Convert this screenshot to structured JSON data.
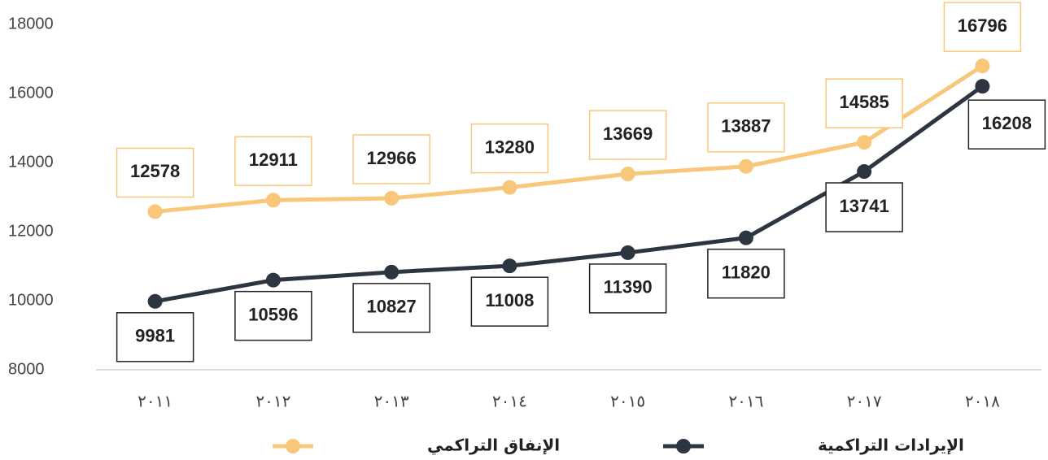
{
  "chart_data": {
    "type": "line",
    "categories": [
      "٢٠١١",
      "٢٠١٢",
      "٢٠١٣",
      "٢٠١٤",
      "٢٠١٥",
      "٢٠١٦",
      "٢٠١٧",
      "٢٠١٨"
    ],
    "series": [
      {
        "name": "الإنفاق التراكمي",
        "color": "#f9c77a",
        "values": [
          12578,
          12911,
          12966,
          13280,
          13669,
          13887,
          14585,
          16796
        ]
      },
      {
        "name": "الإيرادات التراكمية",
        "color": "#2d3540",
        "values": [
          9981,
          10596,
          10827,
          11008,
          11390,
          11820,
          13741,
          16208
        ]
      }
    ],
    "ylim": [
      8000,
      18000
    ],
    "yticks": [
      8000,
      10000,
      12000,
      14000,
      16000,
      18000
    ],
    "grid": false,
    "legend": "bottom"
  }
}
